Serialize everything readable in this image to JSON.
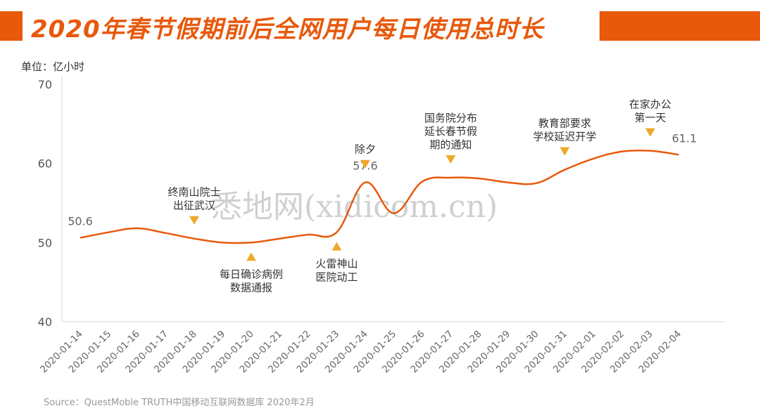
{
  "title": "2020年春节假期前后全网用户每日使用总时长",
  "unit_label": "单位：亿小时",
  "source": "Source：QuestMoble TRUTH中国移动互联网数据库 2020年2月",
  "watermark": "悉地网(xidicom.cn)",
  "colors": {
    "accent": "#e8590c",
    "marker": "#f0a82b"
  },
  "chart_data": {
    "type": "line",
    "title": "2020年春节假期前后全网用户每日使用总时长",
    "ylabel": "单位：亿小时",
    "ylim": [
      40,
      70
    ],
    "yticks": [
      "70",
      "60",
      "50",
      "40"
    ],
    "categories": [
      "2020-01-14",
      "2020-01-15",
      "2020-01-16",
      "2020-01-17",
      "2020-01-18",
      "2020-01-19",
      "2020-01-20",
      "2020-01-21",
      "2020-01-22",
      "2020-01-23",
      "2020-01-24",
      "2020-01-25",
      "2020-01-26",
      "2020-01-27",
      "2020-01-28",
      "2020-01-29",
      "2020-01-30",
      "2020-01-31",
      "2020-02-01",
      "2020-02-02",
      "2020-02-03",
      "2020-02-04"
    ],
    "values": [
      50.6,
      51.3,
      51.8,
      51.2,
      50.5,
      50.0,
      50.0,
      50.5,
      51.0,
      51.3,
      57.6,
      53.7,
      57.7,
      58.2,
      58.1,
      57.6,
      57.5,
      59.2,
      60.6,
      61.5,
      61.6,
      61.1
    ],
    "data_labels": [
      {
        "index": 0,
        "text": "50.6"
      },
      {
        "index": 10,
        "text": "57.6"
      },
      {
        "index": 21,
        "text": "61.1"
      }
    ],
    "annotations": [
      {
        "index": 4,
        "lines": [
          "终南山院士",
          "出征武汉"
        ],
        "position": "above"
      },
      {
        "index": 6,
        "lines": [
          "每日确诊病例",
          "数据通报"
        ],
        "position": "below"
      },
      {
        "index": 9,
        "lines": [
          "火雷神山",
          "医院动工"
        ],
        "position": "below"
      },
      {
        "index": 10,
        "lines": [
          "除夕"
        ],
        "position": "above"
      },
      {
        "index": 13,
        "lines": [
          "国务院分布",
          "延长春节假",
          "期的通知"
        ],
        "position": "above"
      },
      {
        "index": 17,
        "lines": [
          "教育部要求",
          "学校延迟开学"
        ],
        "position": "above"
      },
      {
        "index": 20,
        "lines": [
          "在家办公",
          "第一天"
        ],
        "position": "above"
      }
    ],
    "grid": false,
    "legend": "none"
  }
}
